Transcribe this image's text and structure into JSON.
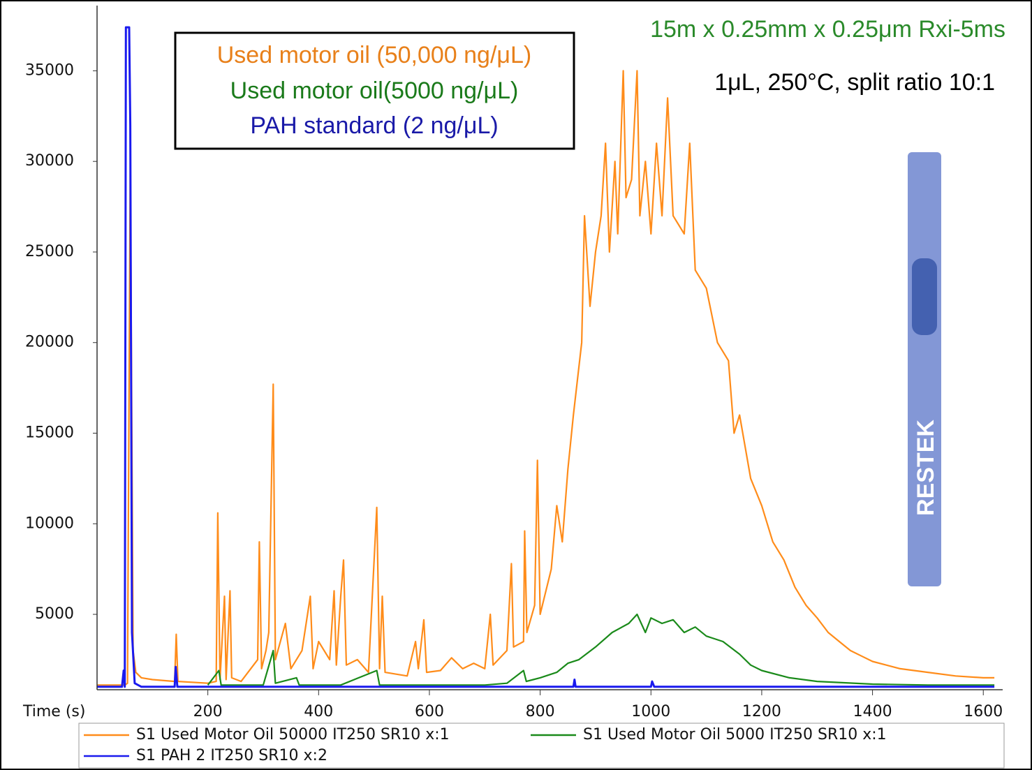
{
  "chart_data": {
    "type": "line",
    "x_label": "Time (s)",
    "xlim": [
      0,
      1635
    ],
    "xticks": [
      200,
      400,
      600,
      800,
      1000,
      1200,
      1400,
      1600
    ],
    "ylim": [
      840,
      38600
    ],
    "yticks": [
      5000,
      10000,
      15000,
      20000,
      25000,
      30000,
      35000
    ],
    "annotations": [
      {
        "text": "Used motor oil (50,000 ng/μL)",
        "color": "#e8801a"
      },
      {
        "text": "Used motor oil(5000 ng/μL)",
        "color": "#1a7a1a"
      },
      {
        "text": "PAH standard (2 ng/μL)",
        "color": "#1a1aa8"
      },
      {
        "text": "15m x 0.25mm x 0.25μm Rxi-5ms",
        "color": "#2a8a2a"
      },
      {
        "text": "1μL, 250°C, split ratio 10:1",
        "color": "#000000"
      }
    ],
    "logo_text": "RESTEK",
    "series": [
      {
        "name": "S1 Used Motor Oil 50000 IT250 SR10 x:1",
        "color": "#ff8c1a",
        "x": [
          0,
          50,
          55,
          60,
          65,
          70,
          80,
          100,
          140,
          143,
          146,
          200,
          215,
          218,
          222,
          230,
          233,
          240,
          243,
          260,
          290,
          293,
          297,
          305,
          310,
          318,
          322,
          340,
          350,
          370,
          385,
          390,
          400,
          420,
          428,
          432,
          440,
          445,
          450,
          470,
          490,
          505,
          510,
          515,
          520,
          560,
          575,
          580,
          590,
          595,
          620,
          640,
          660,
          680,
          700,
          710,
          715,
          740,
          748,
          752,
          770,
          772,
          776,
          790,
          795,
          800,
          820,
          830,
          840,
          850,
          860,
          875,
          880,
          890,
          900,
          910,
          918,
          925,
          935,
          940,
          950,
          955,
          965,
          975,
          980,
          990,
          1000,
          1010,
          1020,
          1030,
          1040,
          1060,
          1070,
          1080,
          1100,
          1120,
          1140,
          1150,
          1160,
          1180,
          1200,
          1220,
          1240,
          1260,
          1280,
          1300,
          1320,
          1340,
          1360,
          1380,
          1400,
          1450,
          1500,
          1550,
          1600,
          1620
        ],
        "values": [
          1100,
          1100,
          1200,
          30000,
          3000,
          1800,
          1500,
          1400,
          1300,
          3900,
          1300,
          1200,
          1300,
          10600,
          1400,
          6000,
          1400,
          6300,
          1500,
          1300,
          2500,
          9000,
          2000,
          3000,
          4000,
          17700,
          2500,
          4500,
          2000,
          3000,
          6000,
          2000,
          3500,
          2500,
          6300,
          2200,
          6000,
          8000,
          2200,
          2500,
          1800,
          10900,
          2000,
          6000,
          1800,
          1600,
          3500,
          2000,
          4700,
          1800,
          1900,
          2600,
          2000,
          2300,
          2000,
          5000,
          2200,
          3000,
          7800,
          3200,
          3500,
          9600,
          4000,
          5500,
          13500,
          5000,
          7500,
          11000,
          9000,
          13000,
          16000,
          20000,
          27000,
          22000,
          25000,
          27000,
          31000,
          25000,
          30000,
          26000,
          35000,
          28000,
          29000,
          35000,
          27000,
          30000,
          26000,
          31000,
          27000,
          33500,
          27000,
          26000,
          31000,
          24000,
          23000,
          20000,
          19000,
          15000,
          16000,
          12500,
          11000,
          9000,
          8000,
          6500,
          5500,
          4800,
          4000,
          3500,
          3000,
          2700,
          2400,
          2000,
          1800,
          1600,
          1500,
          1500
        ]
      },
      {
        "name": "S1 Used Motor Oil 5000 IT250 SR10 x:1",
        "color": "#1a8a1a",
        "x": [
          200,
          220,
          224,
          300,
          318,
          322,
          360,
          365,
          440,
          505,
          510,
          700,
          740,
          770,
          775,
          800,
          830,
          850,
          870,
          900,
          930,
          960,
          975,
          990,
          1000,
          1020,
          1040,
          1060,
          1080,
          1100,
          1130,
          1160,
          1180,
          1200,
          1250,
          1300,
          1400,
          1500,
          1620
        ],
        "values": [
          1100,
          1900,
          1100,
          1100,
          3000,
          1200,
          1500,
          1100,
          1100,
          1900,
          1100,
          1100,
          1200,
          1900,
          1300,
          1500,
          1800,
          2300,
          2500,
          3200,
          4000,
          4500,
          5000,
          4000,
          4800,
          4500,
          4700,
          4000,
          4300,
          3800,
          3500,
          2800,
          2200,
          1900,
          1500,
          1300,
          1150,
          1100,
          1100
        ]
      },
      {
        "name": "S1 PAH 2 IT250 SR10 x:2",
        "color": "#1a1aee",
        "x": [
          0,
          45,
          48,
          50,
          52,
          58,
          60,
          63,
          68,
          80,
          140,
          142,
          145,
          860,
          862,
          864,
          1000,
          1002,
          1006,
          1200,
          1620
        ],
        "values": [
          1000,
          1000,
          1900,
          1000,
          37400,
          37400,
          32000,
          4000,
          1200,
          1000,
          1000,
          2100,
          1000,
          1000,
          1400,
          1000,
          1000,
          1300,
          1000,
          1000,
          1000
        ]
      }
    ]
  }
}
